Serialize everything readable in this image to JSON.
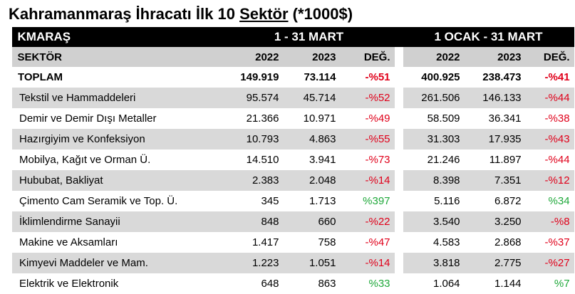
{
  "title": {
    "part1": "Kahramanmaraş İhracatı İlk 10 ",
    "part2": "Sektör",
    "part3": " (*1000$)"
  },
  "header": {
    "region": "KMARAŞ",
    "period1": "1 - 31 MART",
    "period2": "1 OCAK  - 31 MART",
    "sector_col": "SEKTÖR",
    "y2022": "2022",
    "y2023": "2023",
    "change": "DEĞ."
  },
  "rows": [
    {
      "name": "TOPLAM",
      "a2022": "149.919",
      "a2023": "73.114",
      "adeg": "-%51",
      "b2022": "400.925",
      "b2023": "238.473",
      "bdeg": "-%41"
    },
    {
      "name": "Tekstil ve Hammaddeleri",
      "a2022": "95.574",
      "a2023": "45.714",
      "adeg": "-%52",
      "b2022": "261.506",
      "b2023": "146.133",
      "bdeg": "-%44"
    },
    {
      "name": "Demir ve Demir Dışı Metaller",
      "a2022": "21.366",
      "a2023": "10.971",
      "adeg": "-%49",
      "b2022": "58.509",
      "b2023": "36.341",
      "bdeg": "-%38"
    },
    {
      "name": "Hazırgiyim ve Konfeksiyon",
      "a2022": "10.793",
      "a2023": "4.863",
      "adeg": "-%55",
      "b2022": "31.303",
      "b2023": "17.935",
      "bdeg": "-%43"
    },
    {
      "name": "Mobilya, Kağıt ve Orman Ü.",
      "a2022": "14.510",
      "a2023": "3.941",
      "adeg": "-%73",
      "b2022": "21.246",
      "b2023": "11.897",
      "bdeg": "-%44"
    },
    {
      "name": "Hububat, Bakliyat",
      "a2022": "2.383",
      "a2023": "2.048",
      "adeg": "-%14",
      "b2022": "8.398",
      "b2023": "7.351",
      "bdeg": "-%12"
    },
    {
      "name": "Çimento Cam Seramik ve Top. Ü.",
      "a2022": "345",
      "a2023": "1.713",
      "adeg": "%397",
      "b2022": "5.116",
      "b2023": "6.872",
      "bdeg": "%34"
    },
    {
      "name": "İklimlendirme Sanayii",
      "a2022": "848",
      "a2023": "660",
      "adeg": "-%22",
      "b2022": "3.540",
      "b2023": "3.250",
      "bdeg": "-%8"
    },
    {
      "name": "Makine ve Aksamları",
      "a2022": "1.417",
      "a2023": "758",
      "adeg": "-%47",
      "b2022": "4.583",
      "b2023": "2.868",
      "bdeg": "-%37"
    },
    {
      "name": "Kimyevi Maddeler ve Mam.",
      "a2022": "1.223",
      "a2023": "1.051",
      "adeg": "-%14",
      "b2022": "3.818",
      "b2023": "2.775",
      "bdeg": "-%27"
    },
    {
      "name": "Elektrik ve Elektronik",
      "a2022": "648",
      "a2023": "863",
      "adeg": "%33",
      "b2022": "1.064",
      "b2023": "1.144",
      "bdeg": "%7"
    }
  ],
  "colors": {
    "negative": "#e0001a",
    "positive": "#1fa83a",
    "header_bg": "#000000",
    "stripe": "#d9d9d9"
  }
}
